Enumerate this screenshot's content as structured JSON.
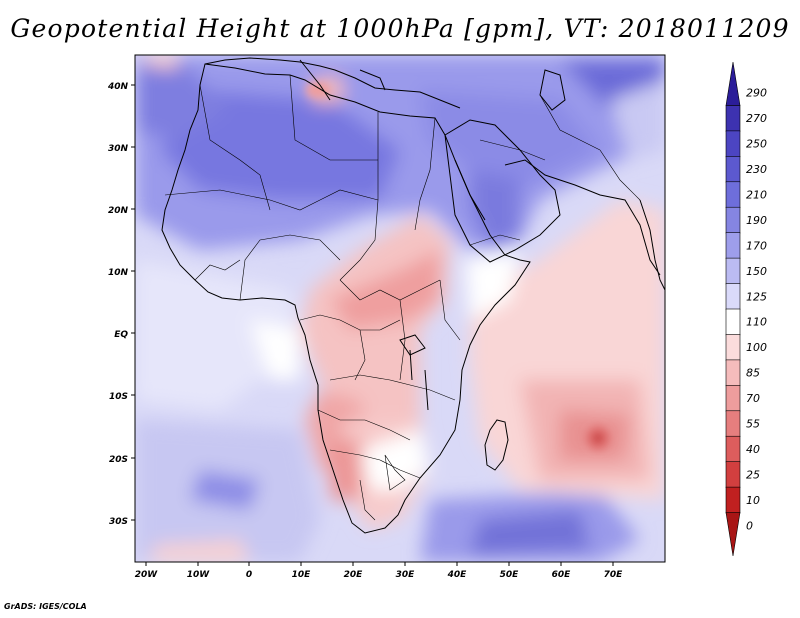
{
  "title": "Geopotential Height at 1000hPa [gpm], VT: 2018011209",
  "footer": "GrADS: IGES/COLA",
  "map": {
    "variable": "Geopotential Height at 1000hPa",
    "units": "gpm",
    "valid_time": "2018011209",
    "lon_ticks": [
      "20W",
      "10W",
      "0",
      "10E",
      "20E",
      "30E",
      "40E",
      "50E",
      "60E",
      "70E"
    ],
    "lat_ticks": [
      "40N",
      "30N",
      "20N",
      "10N",
      "EQ",
      "10S",
      "20S",
      "30S"
    ]
  },
  "colorbar": {
    "labels": [
      "290",
      "270",
      "250",
      "230",
      "210",
      "190",
      "170",
      "150",
      "125",
      "110",
      "100",
      "85",
      "70",
      "55",
      "40",
      "25",
      "10",
      "0"
    ],
    "colors": [
      "#2b1d99",
      "#3d32b0",
      "#4c45c2",
      "#5c59cf",
      "#6e6edb",
      "#8585e2",
      "#9e9eeb",
      "#bbbbf2",
      "#dadafa",
      "#ffffff",
      "#fbdcdc",
      "#f5bcbc",
      "#ee9d9d",
      "#e67e7e",
      "#dd5d5d",
      "#d23f3f",
      "#c02020",
      "#a81515"
    ]
  }
}
